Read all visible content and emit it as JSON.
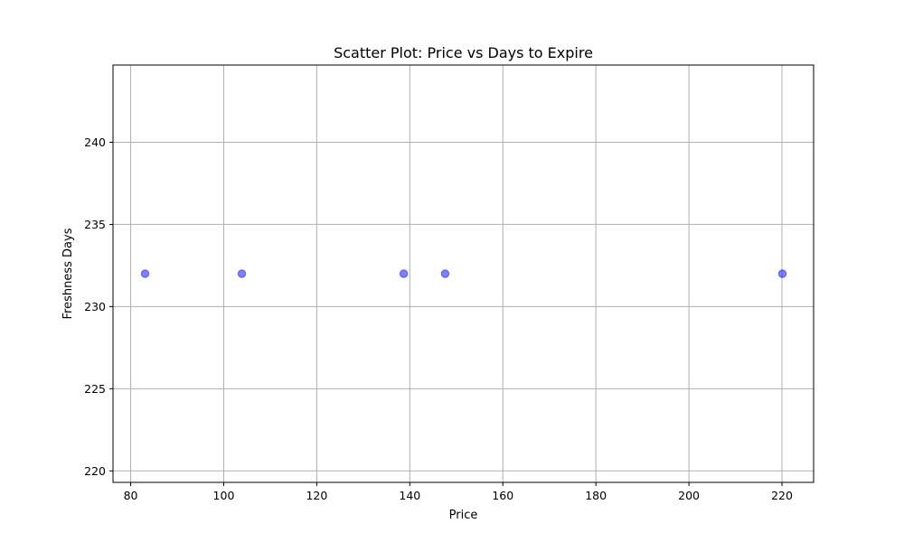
{
  "chart_data": {
    "type": "scatter",
    "title": "Scatter Plot: Price vs Days to Expire",
    "xlabel": "Price",
    "ylabel": "Freshness Days",
    "xlim": [
      76.2,
      226.8
    ],
    "ylim": [
      219.3,
      244.7
    ],
    "x_ticks": [
      80,
      100,
      120,
      140,
      160,
      180,
      200,
      220
    ],
    "y_ticks": [
      220,
      225,
      230,
      235,
      240
    ],
    "grid": true,
    "series": [
      {
        "points": [
          {
            "x": 83.1,
            "y": 232
          },
          {
            "x": 103.9,
            "y": 232
          },
          {
            "x": 138.7,
            "y": 232
          },
          {
            "x": 147.6,
            "y": 232
          },
          {
            "x": 220.1,
            "y": 232
          }
        ],
        "color": "#0000ff",
        "opacity": 0.5
      }
    ]
  }
}
